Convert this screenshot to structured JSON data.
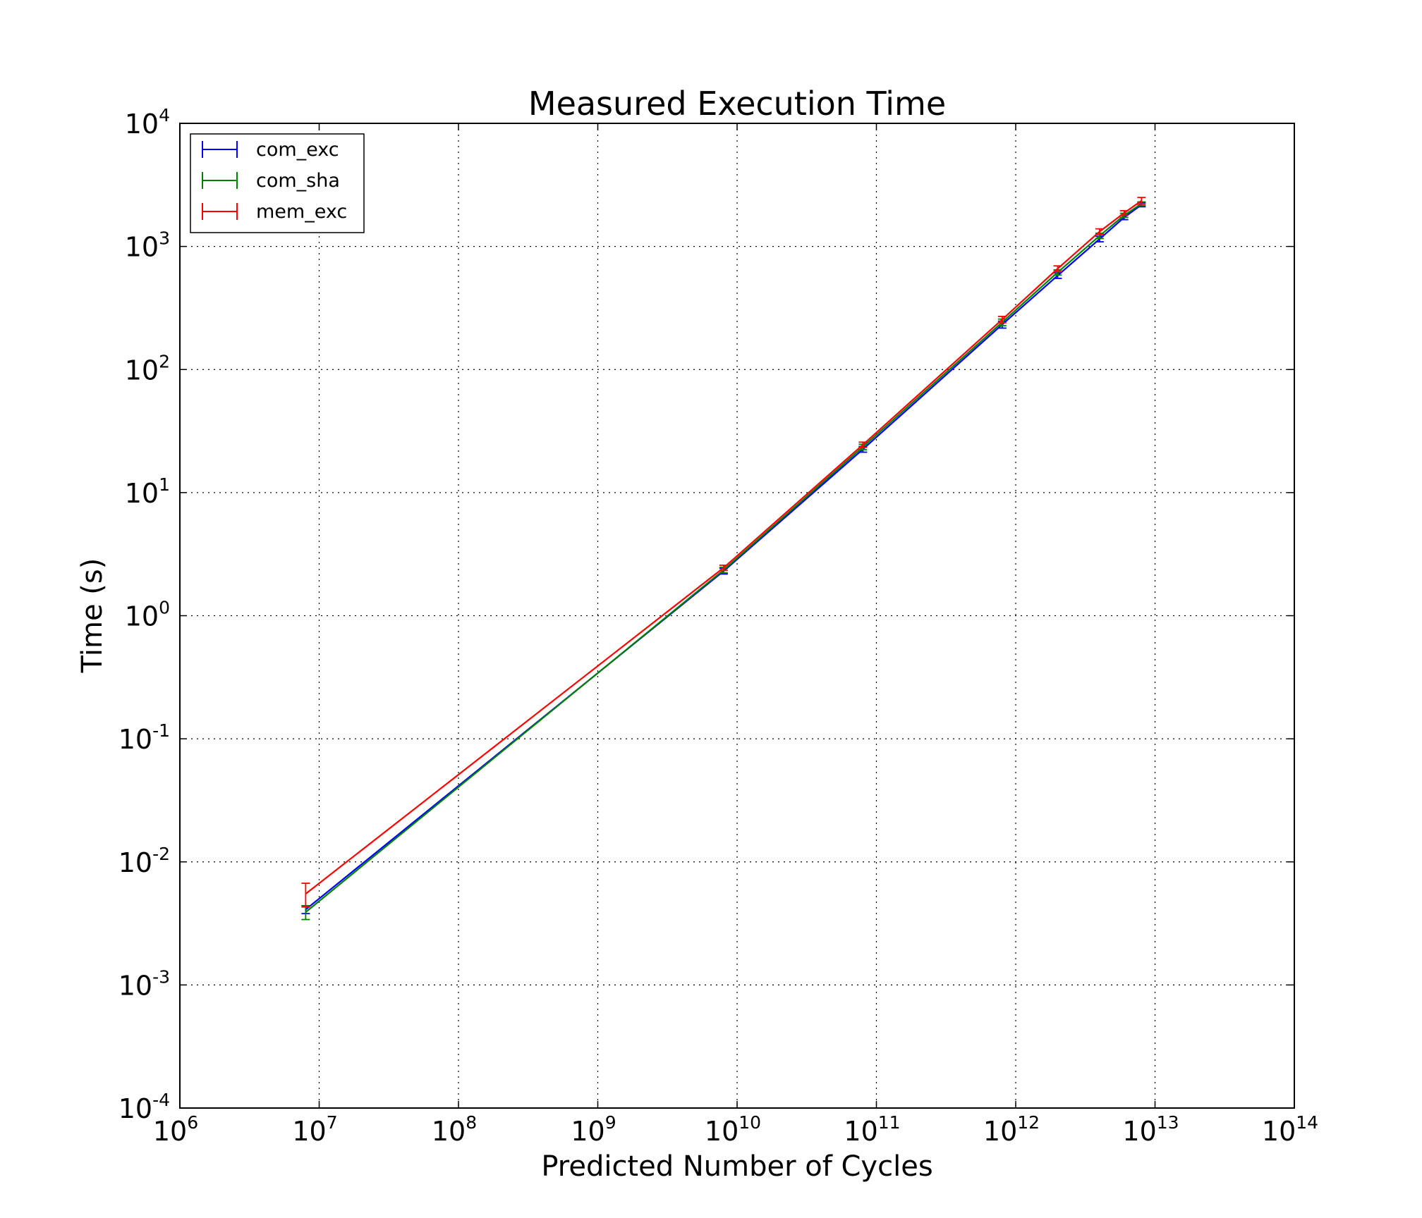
{
  "chart_data": {
    "type": "line",
    "title": "Measured Execution Time",
    "xlabel": "Predicted Number of Cycles",
    "ylabel": "Time (s)",
    "xscale": "log",
    "yscale": "log",
    "xlim": [
      1000000,
      100000000000000
    ],
    "ylim": [
      0.0001,
      10000
    ],
    "grid": true,
    "legend_position": "upper-left",
    "x_ticks": [
      {
        "base": "10",
        "exp": "6",
        "value": 1000000
      },
      {
        "base": "10",
        "exp": "7",
        "value": 10000000
      },
      {
        "base": "10",
        "exp": "8",
        "value": 100000000
      },
      {
        "base": "10",
        "exp": "9",
        "value": 1000000000
      },
      {
        "base": "10",
        "exp": "10",
        "value": 10000000000
      },
      {
        "base": "10",
        "exp": "11",
        "value": 100000000000
      },
      {
        "base": "10",
        "exp": "12",
        "value": 1000000000000
      },
      {
        "base": "10",
        "exp": "13",
        "value": 10000000000000
      },
      {
        "base": "10",
        "exp": "14",
        "value": 100000000000000
      }
    ],
    "y_ticks": [
      {
        "base": "10",
        "exp": "-4",
        "value": 0.0001
      },
      {
        "base": "10",
        "exp": "-3",
        "value": 0.001
      },
      {
        "base": "10",
        "exp": "-2",
        "value": 0.01
      },
      {
        "base": "10",
        "exp": "-1",
        "value": 0.1
      },
      {
        "base": "10",
        "exp": "0",
        "value": 1
      },
      {
        "base": "10",
        "exp": "1",
        "value": 10
      },
      {
        "base": "10",
        "exp": "2",
        "value": 100
      },
      {
        "base": "10",
        "exp": "3",
        "value": 1000
      },
      {
        "base": "10",
        "exp": "4",
        "value": 10000
      }
    ],
    "series": [
      {
        "name": "com_exc",
        "color": "#0000ff",
        "x": [
          8000000,
          8000000000,
          80000000000,
          800000000000,
          2000000000000,
          4000000000000,
          6000000000000,
          8000000000000
        ],
        "y": [
          0.0041,
          2.3,
          22.5,
          232,
          580,
          1150,
          1720,
          2180
        ],
        "err": [
          0.0003,
          0.12,
          1.2,
          15,
          30,
          60,
          70,
          80
        ]
      },
      {
        "name": "com_sha",
        "color": "#008000",
        "x": [
          8000000,
          8000000000,
          80000000000,
          800000000000,
          2000000000000,
          4000000000000,
          6000000000000,
          8000000000000
        ],
        "y": [
          0.0039,
          2.35,
          23.5,
          242,
          615,
          1220,
          1790,
          2220
        ],
        "err": [
          0.0005,
          0.12,
          1.2,
          15,
          30,
          60,
          70,
          80
        ]
      },
      {
        "name": "mem_exc",
        "color": "#ff0000",
        "x": [
          8000000,
          8000000000,
          80000000000,
          800000000000,
          2000000000000,
          4000000000000,
          6000000000000,
          8000000000000
        ],
        "y": [
          0.0055,
          2.45,
          24.5,
          255,
          660,
          1320,
          1870,
          2350
        ],
        "err": [
          0.0012,
          0.12,
          1.2,
          15,
          35,
          70,
          80,
          150
        ]
      }
    ]
  }
}
